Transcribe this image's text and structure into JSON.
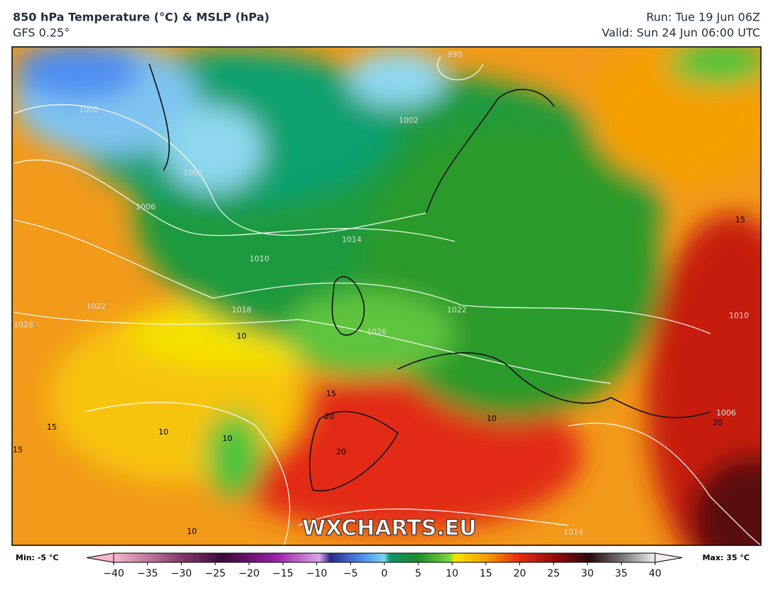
{
  "header": {
    "title": "850 hPa Temperature (°C) & MSLP (hPa)",
    "subtitle": "GFS 0.25°",
    "run": "Run: Tue 19 Jun 06Z",
    "valid": "Valid: Sun 24 Jun 06:00 UTC"
  },
  "map": {
    "watermark": "WXCHARTS.EU",
    "contour_labels": [
      "990",
      "1002",
      "1002",
      "1002",
      "1006",
      "1010",
      "1014",
      "1018",
      "1022",
      "1022",
      "1026",
      "1026",
      "1006",
      "1010",
      "1014",
      "10",
      "10",
      "10",
      "10",
      "10",
      "15",
      "15",
      "15",
      "15",
      "20",
      "20",
      "20"
    ]
  },
  "colorbar": {
    "min_label": "Min: -5 °C",
    "max_label": "Max: 35 °C",
    "lim": [
      -40,
      40
    ],
    "ticks": [
      {
        "value": -40,
        "label": "−40"
      },
      {
        "value": -35,
        "label": "−35"
      },
      {
        "value": -30,
        "label": "−30"
      },
      {
        "value": -25,
        "label": "−25"
      },
      {
        "value": -20,
        "label": "−20"
      },
      {
        "value": -15,
        "label": "−15"
      },
      {
        "value": -10,
        "label": "−10"
      },
      {
        "value": -5,
        "label": "−5"
      },
      0,
      5,
      10,
      15,
      20,
      25,
      30,
      35,
      40
    ]
  }
}
